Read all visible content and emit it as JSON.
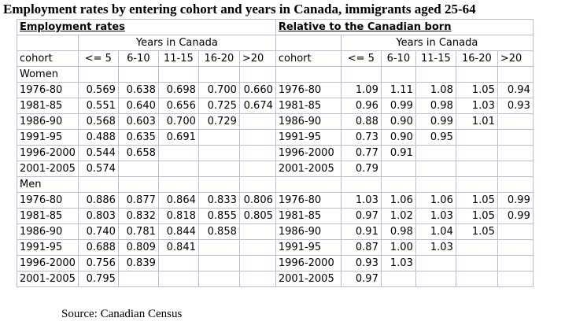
{
  "title": "Employment rates by entering cohort and years in Canada, immigrants aged 25-64",
  "left_section": "Employment rates",
  "right_section": "Relative to the Canadian born",
  "years_header": "Years in Canada",
  "cohort_header": "cohort",
  "columns": [
    "<= 5",
    "6-10",
    "11-15",
    "16-20",
    ">20"
  ],
  "groups": [
    {
      "name": "Women",
      "rows": [
        {
          "cohort": "1976-80",
          "rates": [
            "0.569",
            "0.638",
            "0.698",
            "0.700",
            "0.660"
          ],
          "relative": [
            "1.09",
            "1.11",
            "1.08",
            "1.05",
            "0.94"
          ]
        },
        {
          "cohort": "1981-85",
          "rates": [
            "0.551",
            "0.640",
            "0.656",
            "0.725",
            "0.674"
          ],
          "relative": [
            "0.96",
            "0.99",
            "0.98",
            "1.03",
            "0.93"
          ]
        },
        {
          "cohort": "1986-90",
          "rates": [
            "0.568",
            "0.603",
            "0.700",
            "0.729",
            ""
          ],
          "relative": [
            "0.88",
            "0.90",
            "0.99",
            "1.01",
            ""
          ]
        },
        {
          "cohort": "1991-95",
          "rates": [
            "0.488",
            "0.635",
            "0.691",
            "",
            ""
          ],
          "relative": [
            "0.73",
            "0.90",
            "0.95",
            "",
            ""
          ]
        },
        {
          "cohort": "1996-2000",
          "rates": [
            "0.544",
            "0.658",
            "",
            "",
            ""
          ],
          "relative": [
            "0.77",
            "0.91",
            "",
            "",
            ""
          ]
        },
        {
          "cohort": "2001-2005",
          "rates": [
            "0.574",
            "",
            "",
            "",
            ""
          ],
          "relative": [
            "0.79",
            "",
            "",
            "",
            ""
          ]
        }
      ]
    },
    {
      "name": "Men",
      "rows": [
        {
          "cohort": "1976-80",
          "rates": [
            "0.886",
            "0.877",
            "0.864",
            "0.833",
            "0.806"
          ],
          "relative": [
            "1.03",
            "1.06",
            "1.06",
            "1.05",
            "0.99"
          ]
        },
        {
          "cohort": "1981-85",
          "rates": [
            "0.803",
            "0.832",
            "0.818",
            "0.855",
            "0.805"
          ],
          "relative": [
            "0.97",
            "1.02",
            "1.03",
            "1.05",
            "0.99"
          ]
        },
        {
          "cohort": "1986-90",
          "rates": [
            "0.740",
            "0.781",
            "0.844",
            "0.858",
            ""
          ],
          "relative": [
            "0.91",
            "0.98",
            "1.04",
            "1.05",
            ""
          ]
        },
        {
          "cohort": "1991-95",
          "rates": [
            "0.688",
            "0.809",
            "0.841",
            "",
            ""
          ],
          "relative": [
            "0.87",
            "1.00",
            "1.03",
            "",
            ""
          ]
        },
        {
          "cohort": "1996-2000",
          "rates": [
            "0.756",
            "0.839",
            "",
            "",
            ""
          ],
          "relative": [
            "0.93",
            "1.03",
            "",
            "",
            ""
          ]
        },
        {
          "cohort": "2001-2005",
          "rates": [
            "0.795",
            "",
            "",
            "",
            ""
          ],
          "relative": [
            "0.97",
            "",
            "",
            "",
            ""
          ]
        }
      ]
    }
  ],
  "source": "Source: Canadian Census"
}
